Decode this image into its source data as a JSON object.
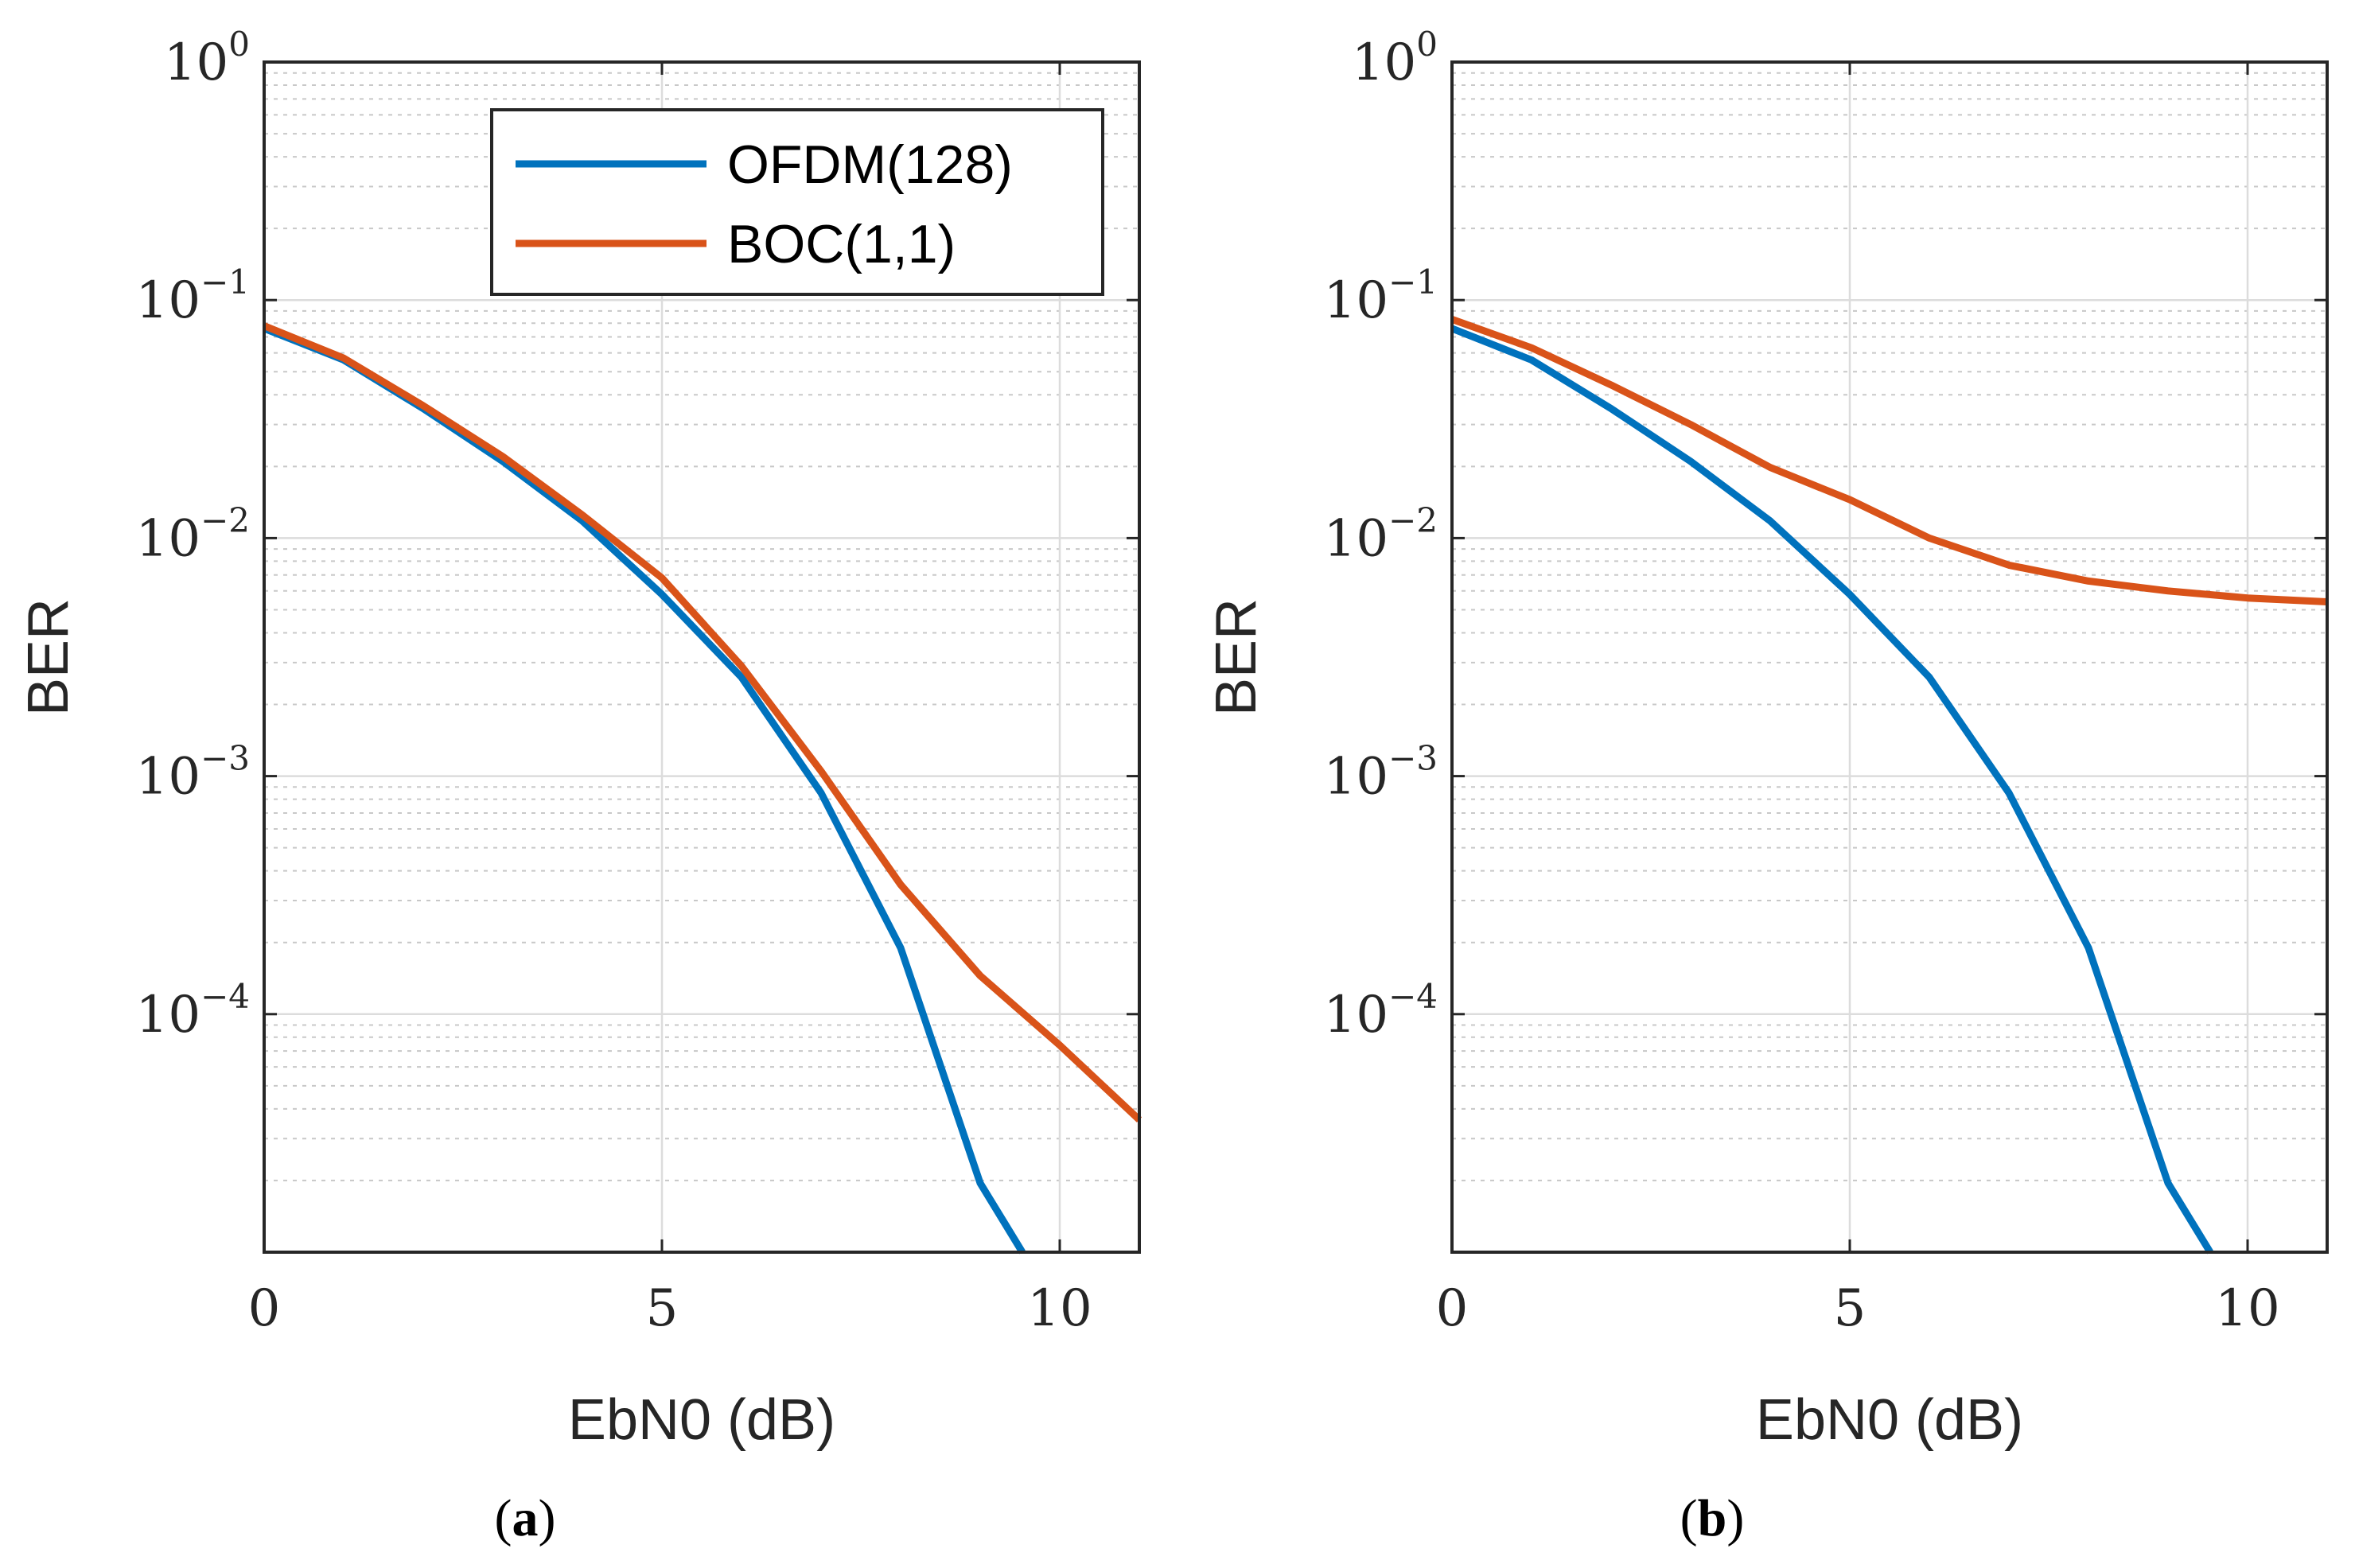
{
  "chart_data": [
    {
      "type": "line",
      "panel_label": "a",
      "caption_open": "(",
      "caption_close": ")",
      "xlabel": "EbN0 (dB)",
      "ylabel": "BER",
      "xlim": [
        0,
        11
      ],
      "ylim": [
        1e-05,
        1
      ],
      "yscale": "log",
      "grid": true,
      "minor_grid": true,
      "xticks": [
        0,
        5,
        10
      ],
      "xtick_labels": [
        "0",
        "5",
        "10"
      ],
      "yticks": [
        1,
        0.1,
        0.01,
        0.001,
        0.0001
      ],
      "ytick_labels": [
        {
          "base": "10",
          "exp": "0"
        },
        {
          "base": "10",
          "exp": "−1"
        },
        {
          "base": "10",
          "exp": "−2"
        },
        {
          "base": "10",
          "exp": "−3"
        },
        {
          "base": "10",
          "exp": "−4"
        }
      ],
      "legend": {
        "position": "top-right"
      },
      "series": [
        {
          "name": "OFDM(128)",
          "color": "#0072BD",
          "x": [
            0,
            1,
            2,
            3,
            4,
            5,
            6,
            7,
            8,
            9,
            9.53
          ],
          "y": [
            0.076,
            0.056,
            0.035,
            0.021,
            0.0118,
            0.0058,
            0.0026,
            0.00085,
            0.00019,
            1.95e-05,
            1e-05
          ]
        },
        {
          "name": "BOC(1,1)",
          "color": "#D95319",
          "x": [
            0,
            1,
            2,
            3,
            4,
            5,
            6,
            7,
            8,
            9,
            10,
            11
          ],
          "y": [
            0.078,
            0.057,
            0.036,
            0.022,
            0.0125,
            0.0068,
            0.0029,
            0.00105,
            0.00035,
            0.000145,
            7.4e-05,
            3.6e-05
          ]
        }
      ]
    },
    {
      "type": "line",
      "panel_label": "b",
      "caption_open": "(",
      "caption_close": ")",
      "xlabel": "EbN0 (dB)",
      "ylabel": "BER",
      "xlim": [
        0,
        11
      ],
      "ylim": [
        1e-05,
        1
      ],
      "yscale": "log",
      "grid": true,
      "minor_grid": true,
      "xticks": [
        0,
        5,
        10
      ],
      "xtick_labels": [
        "0",
        "5",
        "10"
      ],
      "yticks": [
        1,
        0.1,
        0.01,
        0.001,
        0.0001
      ],
      "ytick_labels": [
        {
          "base": "10",
          "exp": "0"
        },
        {
          "base": "10",
          "exp": "−1"
        },
        {
          "base": "10",
          "exp": "−2"
        },
        {
          "base": "10",
          "exp": "−3"
        },
        {
          "base": "10",
          "exp": "−4"
        }
      ],
      "legend": null,
      "series": [
        {
          "name": "OFDM(128)",
          "color": "#0072BD",
          "x": [
            0,
            1,
            2,
            3,
            4,
            5,
            6,
            7,
            8,
            9,
            9.53
          ],
          "y": [
            0.076,
            0.056,
            0.035,
            0.021,
            0.0118,
            0.0058,
            0.0026,
            0.00085,
            0.00019,
            1.95e-05,
            1e-05
          ]
        },
        {
          "name": "BOC(1,1)",
          "color": "#D95319",
          "x": [
            0,
            1,
            2,
            3,
            4,
            5,
            6,
            7,
            8,
            9,
            10,
            11
          ],
          "y": [
            0.083,
            0.063,
            0.044,
            0.03,
            0.0198,
            0.0145,
            0.01,
            0.0077,
            0.0066,
            0.006,
            0.0056,
            0.0054
          ]
        }
      ]
    }
  ]
}
